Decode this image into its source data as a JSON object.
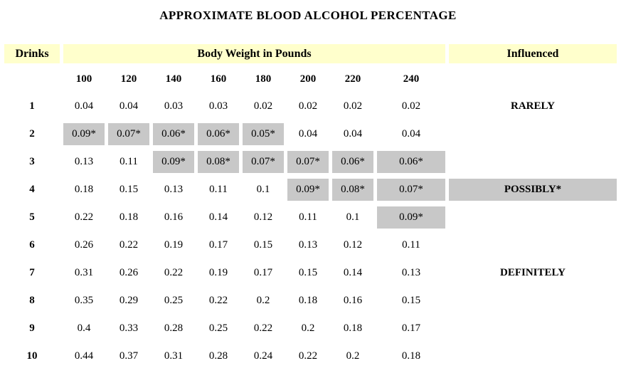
{
  "title": "APPROXIMATE BLOOD ALCOHOL PERCENTAGE",
  "colors": {
    "header_bg": "#FFFFCC",
    "highlight_bg": "#C8C8C8",
    "text": "#000000"
  },
  "table": {
    "header": {
      "drinks": "Drinks",
      "body_weight": "Body Weight in Pounds",
      "influenced": "Influenced"
    },
    "weights": [
      "100",
      "120",
      "140",
      "160",
      "180",
      "200",
      "220",
      "240"
    ],
    "rows": [
      {
        "drinks": "1",
        "values": [
          "0.04",
          "0.04",
          "0.03",
          "0.03",
          "0.02",
          "0.02",
          "0.02",
          "0.02"
        ],
        "highlight": [],
        "influenced": "RARELY",
        "influenced_highlight": false
      },
      {
        "drinks": "2",
        "values": [
          "0.09*",
          "0.07*",
          "0.06*",
          "0.06*",
          "0.05*",
          "0.04",
          "0.04",
          "0.04"
        ],
        "highlight": [
          0,
          1,
          2,
          3,
          4
        ],
        "influenced": "",
        "influenced_highlight": false
      },
      {
        "drinks": "3",
        "values": [
          "0.13",
          "0.11",
          "0.09*",
          "0.08*",
          "0.07*",
          "0.07*",
          "0.06*",
          "0.06*"
        ],
        "highlight": [
          2,
          3,
          4,
          5,
          6,
          7
        ],
        "influenced": "",
        "influenced_highlight": false
      },
      {
        "drinks": "4",
        "values": [
          "0.18",
          "0.15",
          "0.13",
          "0.11",
          "0.1",
          "0.09*",
          "0.08*",
          "0.07*"
        ],
        "highlight": [
          5,
          6,
          7
        ],
        "influenced": "POSSIBLY*",
        "influenced_highlight": true
      },
      {
        "drinks": "5",
        "values": [
          "0.22",
          "0.18",
          "0.16",
          "0.14",
          "0.12",
          "0.11",
          "0.1",
          "0.09*"
        ],
        "highlight": [
          7
        ],
        "influenced": "",
        "influenced_highlight": false
      },
      {
        "drinks": "6",
        "values": [
          "0.26",
          "0.22",
          "0.19",
          "0.17",
          "0.15",
          "0.13",
          "0.12",
          "0.11"
        ],
        "highlight": [],
        "influenced": "",
        "influenced_highlight": false
      },
      {
        "drinks": "7",
        "values": [
          "0.31",
          "0.26",
          "0.22",
          "0.19",
          "0.17",
          "0.15",
          "0.14",
          "0.13"
        ],
        "highlight": [],
        "influenced": "DEFINITELY",
        "influenced_highlight": false
      },
      {
        "drinks": "8",
        "values": [
          "0.35",
          "0.29",
          "0.25",
          "0.22",
          "0.2",
          "0.18",
          "0.16",
          "0.15"
        ],
        "highlight": [],
        "influenced": "",
        "influenced_highlight": false
      },
      {
        "drinks": "9",
        "values": [
          "0.4",
          "0.33",
          "0.28",
          "0.25",
          "0.22",
          "0.2",
          "0.18",
          "0.17"
        ],
        "highlight": [],
        "influenced": "",
        "influenced_highlight": false
      },
      {
        "drinks": "10",
        "values": [
          "0.44",
          "0.37",
          "0.31",
          "0.28",
          "0.24",
          "0.22",
          "0.2",
          "0.18"
        ],
        "highlight": [],
        "influenced": "",
        "influenced_highlight": false
      }
    ]
  }
}
